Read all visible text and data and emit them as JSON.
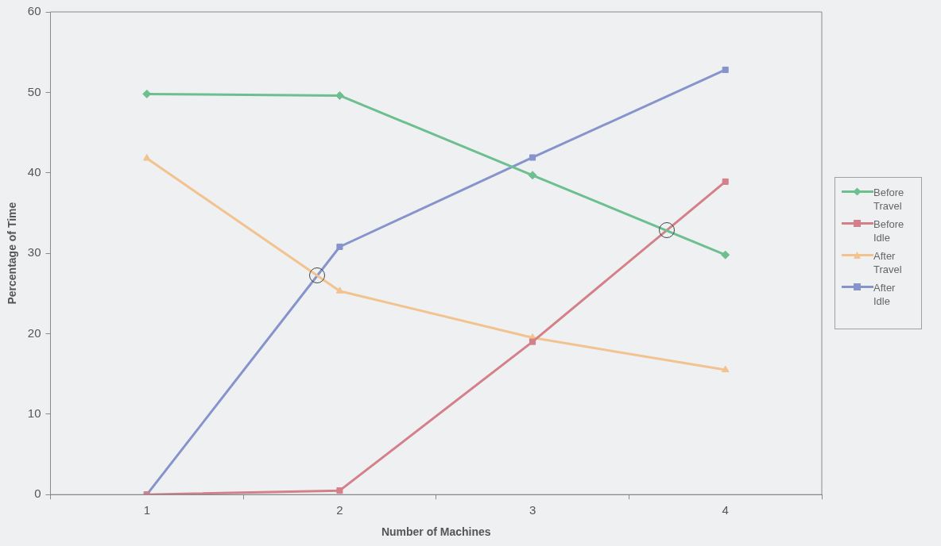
{
  "chart_data": {
    "type": "line",
    "xlabel": "Number of Machines",
    "ylabel": "Percentage of Time",
    "categories": [
      "1",
      "2",
      "3",
      "4"
    ],
    "series": [
      {
        "name": "Before Travel",
        "color": "#6dbf8f",
        "marker": "diamond",
        "values": [
          49.8,
          49.6,
          39.7,
          29.8
        ]
      },
      {
        "name": "Before Idle",
        "color": "#d4808a",
        "marker": "square",
        "values": [
          0,
          0.5,
          19.0,
          38.9
        ]
      },
      {
        "name": "After Travel",
        "color": "#f2c38e",
        "marker": "triangle",
        "values": [
          41.8,
          25.3,
          19.5,
          15.5
        ]
      },
      {
        "name": "After Idle",
        "color": "#8794cc",
        "marker": "square",
        "values": [
          0,
          30.8,
          41.9,
          52.8
        ]
      }
    ],
    "ylim": [
      0,
      60
    ],
    "yticks": [
      0,
      10,
      20,
      30,
      40,
      50,
      60
    ],
    "grid": false,
    "legend": "right",
    "line_style": "solid"
  }
}
